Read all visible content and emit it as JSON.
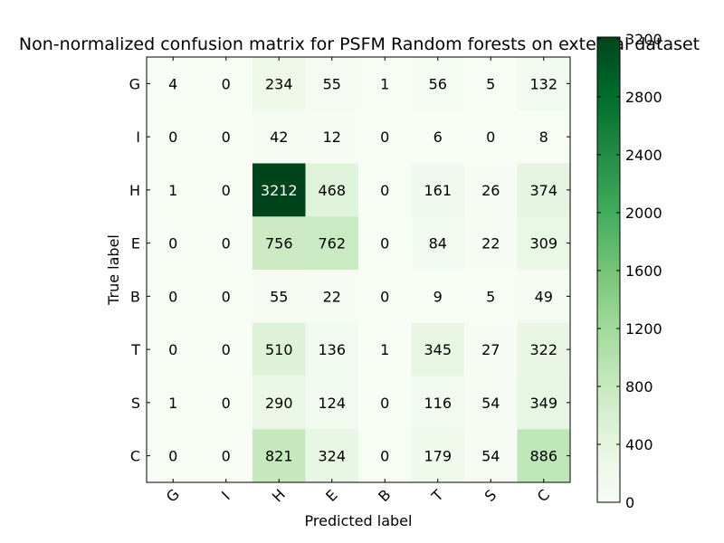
{
  "chart_data": {
    "type": "heatmap",
    "title": "Non-normalized confusion matrix for PSFM Random forests on external dataset",
    "xlabel": "Predicted label",
    "ylabel": "True label",
    "x_categories": [
      "G",
      "I",
      "H",
      "E",
      "B",
      "T",
      "S",
      "C"
    ],
    "y_categories": [
      "G",
      "I",
      "H",
      "E",
      "B",
      "T",
      "S",
      "C"
    ],
    "values": [
      [
        4,
        0,
        234,
        55,
        1,
        56,
        5,
        132
      ],
      [
        0,
        0,
        42,
        12,
        0,
        6,
        0,
        8
      ],
      [
        1,
        0,
        3212,
        468,
        0,
        161,
        26,
        374
      ],
      [
        0,
        0,
        756,
        762,
        0,
        84,
        22,
        309
      ],
      [
        0,
        0,
        55,
        22,
        0,
        9,
        5,
        49
      ],
      [
        0,
        0,
        510,
        136,
        1,
        345,
        27,
        322
      ],
      [
        1,
        0,
        290,
        124,
        0,
        116,
        54,
        349
      ],
      [
        0,
        0,
        821,
        324,
        0,
        179,
        54,
        886
      ]
    ],
    "colorbar": {
      "min": 0,
      "max": 3212,
      "ticks": [
        "0",
        "400",
        "800",
        "1200",
        "1600",
        "2000",
        "2400",
        "2800",
        "3200"
      ],
      "colormap": "Greens",
      "color_low": "#f7fcf5",
      "color_high": "#00441b"
    }
  }
}
